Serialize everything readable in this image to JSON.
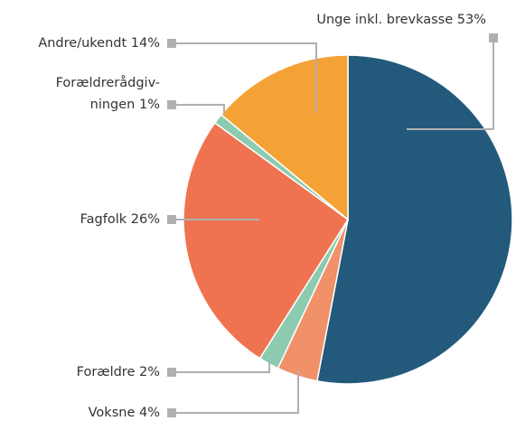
{
  "chart_data": {
    "type": "pie",
    "categories": [
      "Unge inkl. brevkasse",
      "Voksne",
      "Forældre",
      "Fagfolk",
      [
        "Forældrerådgiv-",
        "ningen"
      ],
      "Andre/ukendt"
    ],
    "values": [
      53,
      4,
      2,
      26,
      1,
      14
    ],
    "value_labels": [
      "53%",
      "4%",
      "2%",
      "26%",
      "1%",
      "14%"
    ],
    "colors": [
      "#235a7c",
      "#f0916a",
      "#8ccbb0",
      "#ef7350",
      "#8ccbb0",
      "#f4a235"
    ]
  }
}
